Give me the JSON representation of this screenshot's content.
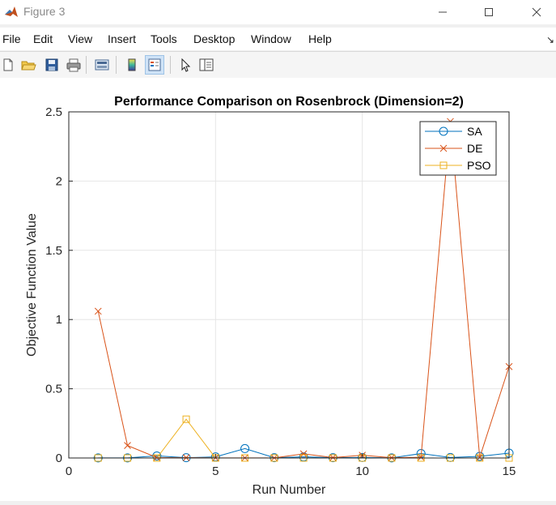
{
  "window": {
    "title": "Figure 3",
    "minimize_icon": "minimize-icon",
    "maximize_icon": "maximize-icon",
    "close_icon": "close-icon"
  },
  "menu": {
    "items": [
      "File",
      "Edit",
      "View",
      "Insert",
      "Tools",
      "Desktop",
      "Window",
      "Help"
    ],
    "dock_icon": "dock-arrow-icon"
  },
  "toolbar": {
    "buttons": [
      {
        "icon": "new-figure-icon"
      },
      {
        "icon": "open-file-icon"
      },
      {
        "icon": "save-icon"
      },
      {
        "icon": "print-icon"
      },
      {
        "icon": "link-plot-icon"
      },
      {
        "icon": "insert-colorbar-icon"
      },
      {
        "icon": "insert-legend-icon",
        "active": true
      },
      {
        "icon": "edit-plot-pointer-icon"
      },
      {
        "icon": "property-inspector-icon"
      }
    ]
  },
  "colors": {
    "SA": "#0072BD",
    "DE": "#D95319",
    "PSO": "#EDB120",
    "grid": "#e6e6e6",
    "axis": "#262626"
  },
  "chart_data": {
    "type": "line",
    "title": "Performance Comparison on Rosenbrock (Dimension=2)",
    "xlabel": "Run Number",
    "ylabel": "Objective Function Value",
    "xlim": [
      0,
      15
    ],
    "ylim": [
      0,
      2.5
    ],
    "xticks": [
      0,
      5,
      10,
      15
    ],
    "xtick_labels": [
      "0",
      "5",
      "10",
      "15"
    ],
    "yticks": [
      0,
      0.5,
      1,
      1.5,
      2,
      2.5
    ],
    "ytick_labels": [
      "0",
      "0.5",
      "1",
      "1.5",
      "2",
      "2.5"
    ],
    "grid": true,
    "legend_position": "top-right",
    "x": [
      1,
      2,
      3,
      4,
      5,
      6,
      7,
      8,
      9,
      10,
      11,
      12,
      13,
      14,
      15
    ],
    "series": [
      {
        "name": "SA",
        "marker": "circle",
        "values": [
          0.001,
          0.001,
          0.015,
          0.002,
          0.008,
          0.068,
          0.002,
          0.008,
          0.002,
          0.004,
          0.001,
          0.032,
          0.004,
          0.012,
          0.035
        ]
      },
      {
        "name": "DE",
        "marker": "cross",
        "values": [
          1.06,
          0.09,
          0.003,
          0.002,
          0.001,
          0.001,
          0.001,
          0.03,
          0.003,
          0.02,
          0.002,
          0.005,
          2.43,
          0.004,
          0.66
        ]
      },
      {
        "name": "PSO",
        "marker": "square",
        "values": [
          0.0,
          0.0,
          0.0,
          0.28,
          0.0,
          0.0,
          0.0,
          0.0,
          0.0,
          0.0,
          0.0,
          0.0,
          0.0,
          0.0,
          0.0
        ]
      }
    ]
  }
}
